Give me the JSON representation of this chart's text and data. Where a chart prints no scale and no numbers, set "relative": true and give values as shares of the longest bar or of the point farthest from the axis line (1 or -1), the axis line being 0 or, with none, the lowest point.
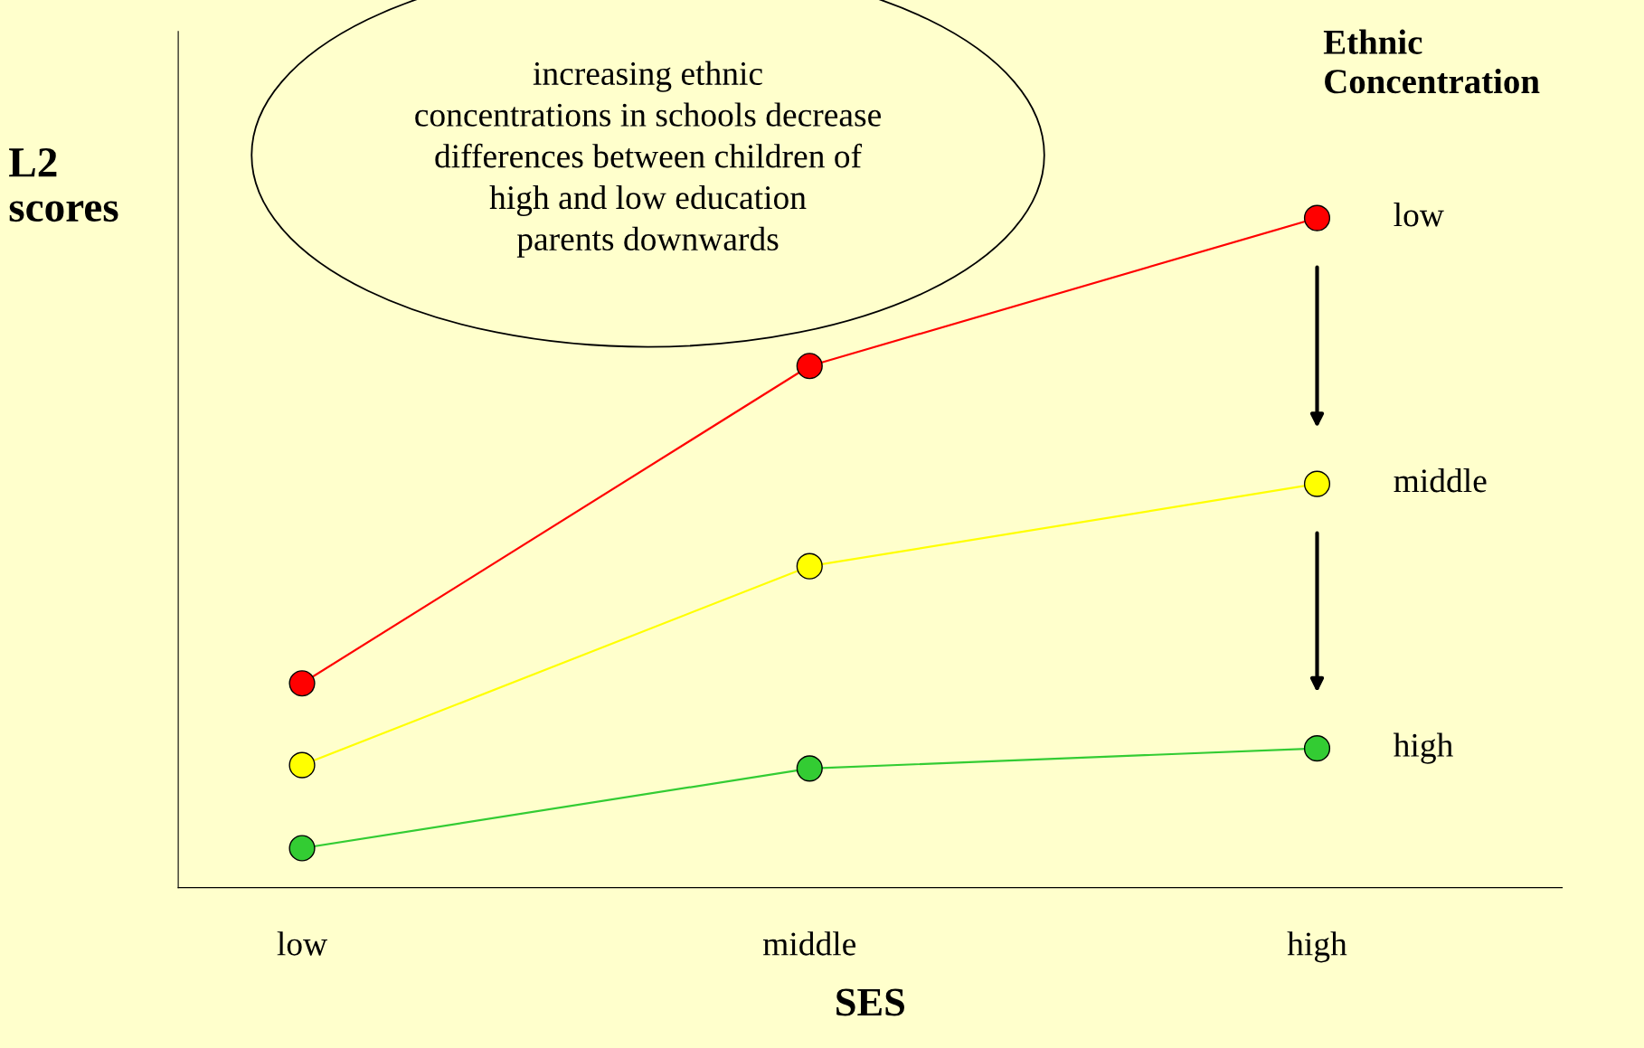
{
  "chart_data": {
    "type": "line",
    "relative": true,
    "xlabel": "SES",
    "ylabel": "L2\nscores",
    "legend_title": "Ethnic\nConcentration",
    "categories": [
      "low",
      "middle",
      "high"
    ],
    "series": [
      {
        "name": "low",
        "color": "#ff0000",
        "values": [
          0.305,
          0.779,
          1
        ]
      },
      {
        "name": "middle",
        "color": "#ffff00",
        "values": [
          0.183,
          0.48,
          0.603
        ]
      },
      {
        "name": "high",
        "color": "#33cc33",
        "values": [
          0.059,
          0.178,
          0.208
        ]
      }
    ],
    "marker": "circle",
    "legend": "right",
    "line_style": "solid",
    "grid": false,
    "annotations": [
      "increasing ethnic\nconcentrations in schools decrease\ndifferences between children of\nhigh and low education\nparents downwards"
    ]
  }
}
